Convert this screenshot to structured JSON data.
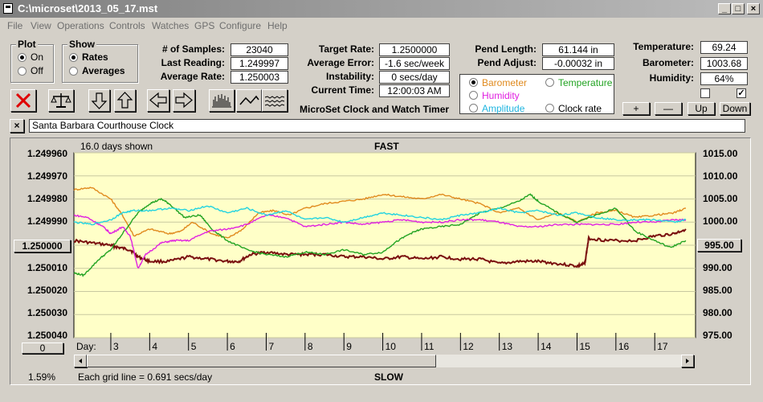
{
  "window": {
    "title": "C:\\microset\\2013_05_17.mst"
  },
  "menu": [
    "File",
    "View",
    "Operations",
    "Controls",
    "Watches",
    "GPS",
    "Configure",
    "Help"
  ],
  "plot": {
    "title": "Plot",
    "on": "On",
    "off": "Off",
    "selected": "on"
  },
  "show": {
    "title": "Show",
    "rates": "Rates",
    "averages": "Averages",
    "selected": "rates"
  },
  "stats": {
    "samples_label": "# of Samples:",
    "samples": "23040",
    "last_label": "Last Reading:",
    "last": "1.249997",
    "avg_label": "Average Rate:",
    "avg": "1.250003",
    "target_label": "Target Rate:",
    "target": "1.2500000",
    "error_label": "Average Error:",
    "error": "-1.6 sec/week",
    "instab_label": "Instability:",
    "instab": "0 secs/day",
    "time_label": "Current Time:",
    "time": "12:00:03 AM",
    "pend_len_label": "Pend Length:",
    "pend_len": "61.144 in",
    "pend_adj_label": "Pend Adjust:",
    "pend_adj": "-0.00032 in",
    "temp_label": "Temperature:",
    "temp": "69.24",
    "baro_label": "Barometer:",
    "baro": "1003.68",
    "hum_label": "Humidity:",
    "hum": "64%"
  },
  "app_title": "MicroSet Clock and Watch Timer",
  "overlay": {
    "barometer": "Barometer",
    "temperature": "Temperature",
    "humidity": "Humidity",
    "amplitude": "Amplitude",
    "clockrate": "Clock rate",
    "selected": "barometer",
    "colors": {
      "barometer": "#e08a1e",
      "temperature": "#22a322",
      "humidity": "#e020e0",
      "amplitude": "#22d3e0",
      "clockrate": "#000000",
      "rate": "#7a0f0f"
    }
  },
  "adjust_buttons": {
    "plus": "+",
    "minus": "—",
    "up": "Up",
    "down": "Down"
  },
  "checkboxes": [
    {
      "checked": false
    },
    {
      "checked": true
    }
  ],
  "clock_name": "Santa Barbara Courthouse Clock",
  "chart_data": {
    "type": "line",
    "top_label": "FAST",
    "bottom_label": "SLOW",
    "days_shown": "16.0 days shown",
    "grid_note": "Each grid line = 0.691 secs/day",
    "percent": "1.59%",
    "y_left": {
      "ticks": [
        "1.249960",
        "1.249970",
        "1.249980",
        "1.249990",
        "1.250000",
        "1.250010",
        "1.250020",
        "1.250030",
        "1.250040"
      ],
      "range": [
        1.24996,
        1.25004
      ],
      "inverted": true
    },
    "y_right": {
      "ticks": [
        "1015.00",
        "1010.00",
        "1005.00",
        "1000.00",
        "995.00",
        "990.00",
        "985.00",
        "980.00",
        "975.00"
      ],
      "range": [
        975,
        1015
      ]
    },
    "center_value": "1.250000",
    "right_value": "995.00",
    "bottom_value": "0",
    "x": {
      "label": "Day:",
      "ticks": [
        "3",
        "4",
        "5",
        "6",
        "7",
        "8",
        "9",
        "10",
        "11",
        "12",
        "13",
        "14",
        "15",
        "16",
        "17"
      ],
      "range": [
        2.05,
        18.05
      ]
    },
    "series": [
      {
        "key": "rate",
        "axis": "left",
        "points": [
          [
            2.05,
            1.249998
          ],
          [
            2.5,
            1.249999
          ],
          [
            3.0,
            1.25
          ],
          [
            3.2,
            1.250001
          ],
          [
            3.5,
            1.250002
          ],
          [
            3.7,
            1.250005
          ],
          [
            4.0,
            1.250007
          ],
          [
            4.5,
            1.250007
          ],
          [
            5.0,
            1.250005
          ],
          [
            5.5,
            1.250006
          ],
          [
            6.0,
            1.250007
          ],
          [
            6.3,
            1.250007
          ],
          [
            6.6,
            1.250004
          ],
          [
            7.0,
            1.250003
          ],
          [
            7.5,
            1.250004
          ],
          [
            8.0,
            1.250004
          ],
          [
            8.5,
            1.250004
          ],
          [
            9.0,
            1.250005
          ],
          [
            9.5,
            1.250005
          ],
          [
            10.0,
            1.250006
          ],
          [
            10.5,
            1.250005
          ],
          [
            11.0,
            1.250006
          ],
          [
            11.5,
            1.250005
          ],
          [
            12.0,
            1.250006
          ],
          [
            12.5,
            1.250006
          ],
          [
            13.0,
            1.250008
          ],
          [
            13.5,
            1.250007
          ],
          [
            14.0,
            1.250007
          ],
          [
            14.5,
            1.250008
          ],
          [
            15.0,
            1.250009
          ],
          [
            15.2,
            1.250008
          ],
          [
            15.3,
            1.249997
          ],
          [
            15.8,
            1.249998
          ],
          [
            16.5,
            1.249998
          ],
          [
            17.0,
            1.249996
          ],
          [
            17.5,
            1.249995
          ],
          [
            17.8,
            1.249993
          ]
        ]
      },
      {
        "key": "barometer",
        "axis": "right",
        "points": [
          [
            2.05,
            1007
          ],
          [
            2.5,
            1007.5
          ],
          [
            3.0,
            1005
          ],
          [
            3.3,
            1001.5
          ],
          [
            3.6,
            997
          ],
          [
            4.0,
            998.5
          ],
          [
            4.5,
            997.5
          ],
          [
            4.8,
            998
          ],
          [
            5.1,
            1000
          ],
          [
            5.6,
            997.5
          ],
          [
            6.0,
            996.5
          ],
          [
            6.4,
            998.5
          ],
          [
            6.8,
            1002
          ],
          [
            7.2,
            1002.5
          ],
          [
            7.6,
            1001.5
          ],
          [
            8.0,
            1003
          ],
          [
            8.5,
            1004
          ],
          [
            9.0,
            1004.5
          ],
          [
            9.5,
            1005
          ],
          [
            10.0,
            1006
          ],
          [
            10.5,
            1005.5
          ],
          [
            11.0,
            1005
          ],
          [
            11.5,
            1006
          ],
          [
            12.0,
            1005
          ],
          [
            12.5,
            1004
          ],
          [
            13.0,
            1002
          ],
          [
            13.5,
            1003
          ],
          [
            14.0,
            1000.5
          ],
          [
            14.5,
            1002
          ],
          [
            15.0,
            1000
          ],
          [
            15.5,
            1002
          ],
          [
            16.0,
            1002.5
          ],
          [
            16.5,
            1001
          ],
          [
            17.0,
            1001.5
          ],
          [
            17.5,
            1002
          ],
          [
            17.8,
            1003
          ]
        ]
      },
      {
        "key": "temperature",
        "axis": "right",
        "points": [
          [
            2.05,
            989
          ],
          [
            2.3,
            988.5
          ],
          [
            2.7,
            992
          ],
          [
            3.0,
            994
          ],
          [
            3.3,
            997.5
          ],
          [
            3.7,
            1002
          ],
          [
            4.0,
            1004
          ],
          [
            4.3,
            1005
          ],
          [
            4.5,
            1004
          ],
          [
            4.9,
            1001
          ],
          [
            5.3,
            1001.5
          ],
          [
            5.6,
            998.5
          ],
          [
            6.0,
            996
          ],
          [
            6.5,
            994
          ],
          [
            7.0,
            993
          ],
          [
            7.5,
            992.5
          ],
          [
            8.0,
            993.5
          ],
          [
            8.5,
            993
          ],
          [
            9.0,
            994
          ],
          [
            9.5,
            993
          ],
          [
            10.0,
            993.5
          ],
          [
            10.3,
            995.5
          ],
          [
            10.7,
            997.5
          ],
          [
            11.0,
            998.5
          ],
          [
            11.5,
            999
          ],
          [
            12.0,
            999.5
          ],
          [
            12.5,
            1002
          ],
          [
            13.0,
            1003
          ],
          [
            13.5,
            1004.5
          ],
          [
            13.8,
            1006
          ],
          [
            14.0,
            1004.5
          ],
          [
            14.5,
            1002
          ],
          [
            15.0,
            1000
          ],
          [
            15.5,
            1001.5
          ],
          [
            16.0,
            1003
          ],
          [
            16.5,
            998
          ],
          [
            17.0,
            996
          ],
          [
            17.4,
            994.5
          ],
          [
            17.8,
            996
          ]
        ]
      },
      {
        "key": "humidity",
        "axis": "right",
        "points": [
          [
            2.05,
            1001.5
          ],
          [
            2.4,
            1001
          ],
          [
            2.8,
            999
          ],
          [
            3.0,
            997.5
          ],
          [
            3.3,
            999
          ],
          [
            3.5,
            997
          ],
          [
            3.7,
            990
          ],
          [
            3.9,
            993
          ],
          [
            4.3,
            995.5
          ],
          [
            4.6,
            996
          ],
          [
            5.0,
            996
          ],
          [
            5.5,
            998
          ],
          [
            6.0,
            998.5
          ],
          [
            6.5,
            999.5
          ],
          [
            7.0,
            1001.5
          ],
          [
            7.5,
            1001
          ],
          [
            8.0,
            999
          ],
          [
            8.5,
            999.5
          ],
          [
            9.0,
            1000
          ],
          [
            9.5,
            999.5
          ],
          [
            10.0,
            1000
          ],
          [
            10.5,
            1000.5
          ],
          [
            11.0,
            1000
          ],
          [
            11.5,
            1000
          ],
          [
            12.0,
            1000.5
          ],
          [
            12.5,
            1000.5
          ],
          [
            13.0,
            1000
          ],
          [
            13.5,
            999
          ],
          [
            14.0,
            999
          ],
          [
            14.5,
            999.5
          ],
          [
            15.0,
            999.5
          ],
          [
            15.5,
            999.5
          ],
          [
            16.0,
            999.5
          ],
          [
            16.5,
            1000
          ],
          [
            17.0,
            1000
          ],
          [
            17.5,
            1000.5
          ],
          [
            17.8,
            1000.5
          ]
        ]
      },
      {
        "key": "amplitude",
        "axis": "right",
        "points": [
          [
            2.05,
            1000
          ],
          [
            2.5,
            999.5
          ],
          [
            3.0,
            1000.5
          ],
          [
            3.3,
            1002
          ],
          [
            3.6,
            1002.5
          ],
          [
            4.0,
            1002.5
          ],
          [
            4.5,
            1003
          ],
          [
            5.0,
            1002.5
          ],
          [
            5.5,
            1003.5
          ],
          [
            6.0,
            1002
          ],
          [
            6.5,
            1003
          ],
          [
            7.0,
            1001.5
          ],
          [
            7.5,
            1002.5
          ],
          [
            8.0,
            1000.5
          ],
          [
            8.5,
            1001
          ],
          [
            9.0,
            1000
          ],
          [
            9.5,
            1001
          ],
          [
            10.0,
            1002
          ],
          [
            10.5,
            1001.5
          ],
          [
            11.0,
            1001
          ],
          [
            11.5,
            1000.5
          ],
          [
            12.0,
            1001.5
          ],
          [
            12.5,
            1002
          ],
          [
            13.0,
            1003
          ],
          [
            13.5,
            1002
          ],
          [
            14.0,
            1002.5
          ],
          [
            14.5,
            1001.5
          ],
          [
            15.0,
            1002
          ],
          [
            15.5,
            1001
          ],
          [
            16.0,
            1000.5
          ],
          [
            16.5,
            1000.5
          ],
          [
            17.0,
            1000.5
          ],
          [
            17.5,
            1000
          ],
          [
            17.8,
            1000.5
          ]
        ]
      }
    ]
  }
}
